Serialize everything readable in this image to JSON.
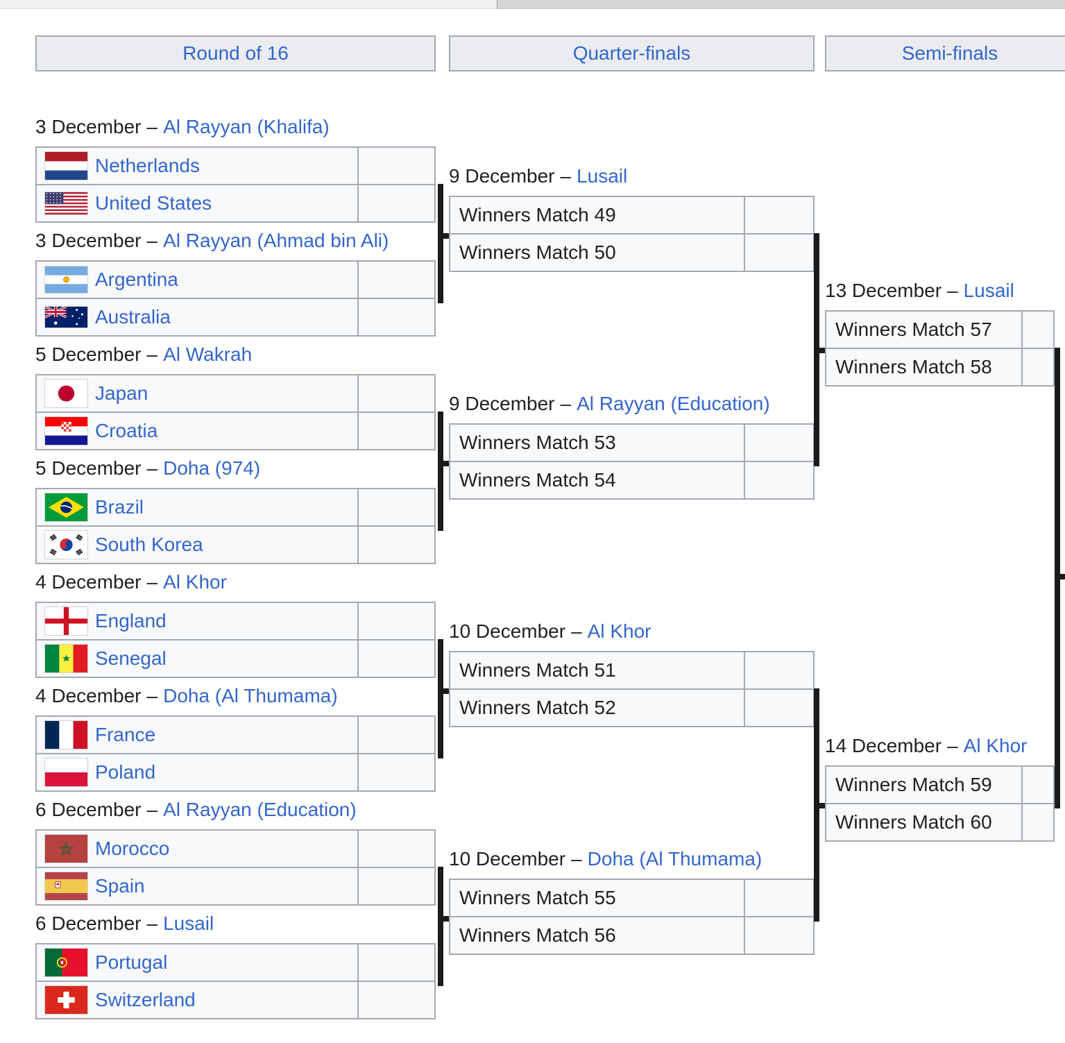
{
  "date_venue_separator": "–",
  "colors": {
    "link_blue": "#3366cc",
    "text": "#202122",
    "row_bg": "#f8f9fa",
    "header_bg": "#eaecf0",
    "border": "#a2a9b1",
    "connector": "#1b1b1b"
  },
  "columns": {
    "round_of_16": {
      "header": "Round of 16",
      "matches": [
        {
          "date": "3 December",
          "venue": "Al Rayyan (Khalifa)",
          "teams": [
            {
              "name": "Netherlands",
              "flag_icon": "netherlands-flag",
              "score": ""
            },
            {
              "name": "United States",
              "flag_icon": "united-states-flag",
              "score": ""
            }
          ]
        },
        {
          "date": "3 December",
          "venue": "Al Rayyan (Ahmad bin Ali)",
          "teams": [
            {
              "name": "Argentina",
              "flag_icon": "argentina-flag",
              "score": ""
            },
            {
              "name": "Australia",
              "flag_icon": "australia-flag",
              "score": ""
            }
          ]
        },
        {
          "date": "5 December",
          "venue": "Al Wakrah",
          "teams": [
            {
              "name": "Japan",
              "flag_icon": "japan-flag",
              "score": ""
            },
            {
              "name": "Croatia",
              "flag_icon": "croatia-flag",
              "score": ""
            }
          ]
        },
        {
          "date": "5 December",
          "venue": "Doha (974)",
          "teams": [
            {
              "name": "Brazil",
              "flag_icon": "brazil-flag",
              "score": ""
            },
            {
              "name": "South Korea",
              "flag_icon": "south-korea-flag",
              "score": ""
            }
          ]
        },
        {
          "date": "4 December",
          "venue": "Al Khor",
          "teams": [
            {
              "name": "England",
              "flag_icon": "england-flag",
              "score": ""
            },
            {
              "name": "Senegal",
              "flag_icon": "senegal-flag",
              "score": ""
            }
          ]
        },
        {
          "date": "4 December",
          "venue": "Doha (Al Thumama)",
          "teams": [
            {
              "name": "France",
              "flag_icon": "france-flag",
              "score": ""
            },
            {
              "name": "Poland",
              "flag_icon": "poland-flag",
              "score": ""
            }
          ]
        },
        {
          "date": "6 December",
          "venue": "Al Rayyan (Education)",
          "teams": [
            {
              "name": "Morocco",
              "flag_icon": "morocco-flag",
              "score": ""
            },
            {
              "name": "Spain",
              "flag_icon": "spain-flag",
              "score": ""
            }
          ]
        },
        {
          "date": "6 December",
          "venue": "Lusail",
          "teams": [
            {
              "name": "Portugal",
              "flag_icon": "portugal-flag",
              "score": ""
            },
            {
              "name": "Switzerland",
              "flag_icon": "switzerland-flag",
              "score": ""
            }
          ]
        }
      ]
    },
    "quarter_finals": {
      "header": "Quarter-finals",
      "matches": [
        {
          "date": "9 December",
          "venue": "Lusail",
          "teams": [
            {
              "name": "Winners Match 49",
              "score": ""
            },
            {
              "name": "Winners Match 50",
              "score": ""
            }
          ]
        },
        {
          "date": "9 December",
          "venue": "Al Rayyan (Education)",
          "teams": [
            {
              "name": "Winners Match 53",
              "score": ""
            },
            {
              "name": "Winners Match 54",
              "score": ""
            }
          ]
        },
        {
          "date": "10 December",
          "venue": "Al Khor",
          "teams": [
            {
              "name": "Winners Match 51",
              "score": ""
            },
            {
              "name": "Winners Match 52",
              "score": ""
            }
          ]
        },
        {
          "date": "10 December",
          "venue": "Doha (Al Thumama)",
          "teams": [
            {
              "name": "Winners Match 55",
              "score": ""
            },
            {
              "name": "Winners Match 56",
              "score": ""
            }
          ]
        }
      ]
    },
    "semi_finals": {
      "header": "Semi-finals",
      "matches": [
        {
          "date": "13 December",
          "venue": "Lusail",
          "teams": [
            {
              "name": "Winners Match 57",
              "score": ""
            },
            {
              "name": "Winners Match 58",
              "score": ""
            }
          ]
        },
        {
          "date": "14 December",
          "venue": "Al Khor",
          "teams": [
            {
              "name": "Winners Match 59",
              "score": ""
            },
            {
              "name": "Winners Match 60",
              "score": ""
            }
          ]
        }
      ]
    }
  }
}
